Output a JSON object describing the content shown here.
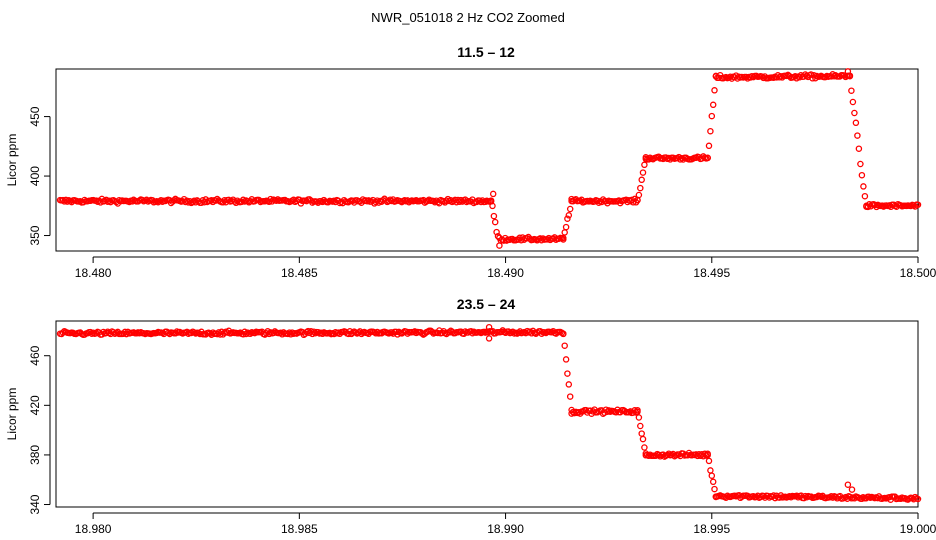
{
  "figure_title": "NWR_051018  2 Hz CO2 Zoomed",
  "series_color": "#ff0000",
  "chart_data": [
    {
      "type": "scatter",
      "title": "11.5 – 12",
      "xlabel": "",
      "ylabel": "Licor ppm",
      "xlim": [
        18.4791,
        18.5
      ],
      "ylim": [
        337,
        490
      ],
      "xticks": [
        18.48,
        18.485,
        18.49,
        18.495,
        18.5
      ],
      "xtick_labels": [
        "18.480",
        "18.485",
        "18.490",
        "18.495",
        "18.500"
      ],
      "yticks": [
        350,
        400,
        450
      ],
      "ytick_labels": [
        "350",
        "400",
        "450"
      ],
      "segments": [
        {
          "x_start": 18.4792,
          "x_end": 18.48965,
          "y_start": 379,
          "y_end": 379,
          "noise": 1.1
        },
        {
          "x_start": 18.48965,
          "x_end": 18.48985,
          "y_start": 379,
          "y_end": 342,
          "noise": 1.5
        },
        {
          "x_start": 18.48985,
          "x_end": 18.4914,
          "y_start": 347,
          "y_end": 347,
          "noise": 1.0
        },
        {
          "x_start": 18.4914,
          "x_end": 18.4916,
          "y_start": 347,
          "y_end": 379,
          "noise": 1.2
        },
        {
          "x_start": 18.4916,
          "x_end": 18.4932,
          "y_start": 379,
          "y_end": 379,
          "noise": 1.0
        },
        {
          "x_start": 18.4932,
          "x_end": 18.4934,
          "y_start": 379,
          "y_end": 415,
          "noise": 1.2
        },
        {
          "x_start": 18.4934,
          "x_end": 18.4949,
          "y_start": 415,
          "y_end": 415,
          "noise": 1.0
        },
        {
          "x_start": 18.4949,
          "x_end": 18.4951,
          "y_start": 415,
          "y_end": 483,
          "noise": 1.5
        },
        {
          "x_start": 18.4951,
          "x_end": 18.49835,
          "y_start": 483,
          "y_end": 484,
          "noise": 1.1
        },
        {
          "x_start": 18.49835,
          "x_end": 18.49875,
          "y_start": 484,
          "y_end": 372,
          "noise": 2.0
        },
        {
          "x_start": 18.49875,
          "x_end": 18.5,
          "y_start": 375,
          "y_end": 375,
          "noise": 1.0
        }
      ],
      "outliers": [
        {
          "x": 18.4897,
          "y": 385
        },
        {
          "x": 18.4983,
          "y": 488
        }
      ]
    },
    {
      "type": "scatter",
      "title": "23.5 – 24",
      "xlabel": "",
      "ylabel": "Licor ppm",
      "xlim": [
        18.9791,
        19.0
      ],
      "ylim": [
        338,
        488
      ],
      "xticks": [
        18.98,
        18.985,
        18.99,
        18.995,
        19.0
      ],
      "xtick_labels": [
        "18.980",
        "18.985",
        "18.990",
        "18.995",
        "19.000"
      ],
      "yticks": [
        340,
        380,
        420,
        460
      ],
      "ytick_labels": [
        "340",
        "380",
        "420",
        "460"
      ],
      "segments": [
        {
          "x_start": 18.9792,
          "x_end": 18.9914,
          "y_start": 478,
          "y_end": 479,
          "noise": 1.0
        },
        {
          "x_start": 18.9914,
          "x_end": 18.9916,
          "y_start": 479,
          "y_end": 415,
          "noise": 1.5
        },
        {
          "x_start": 18.9916,
          "x_end": 18.9932,
          "y_start": 415,
          "y_end": 415,
          "noise": 1.0
        },
        {
          "x_start": 18.9932,
          "x_end": 18.9934,
          "y_start": 415,
          "y_end": 380,
          "noise": 1.2
        },
        {
          "x_start": 18.9934,
          "x_end": 18.9949,
          "y_start": 380,
          "y_end": 380,
          "noise": 1.0
        },
        {
          "x_start": 18.9949,
          "x_end": 18.9951,
          "y_start": 380,
          "y_end": 347,
          "noise": 1.2
        },
        {
          "x_start": 18.9951,
          "x_end": 19.0,
          "y_start": 347,
          "y_end": 345,
          "noise": 1.0
        }
      ],
      "outliers": [
        {
          "x": 18.9896,
          "y": 483
        },
        {
          "x": 18.9896,
          "y": 474
        },
        {
          "x": 18.9983,
          "y": 356
        },
        {
          "x": 18.9984,
          "y": 352
        }
      ]
    }
  ]
}
